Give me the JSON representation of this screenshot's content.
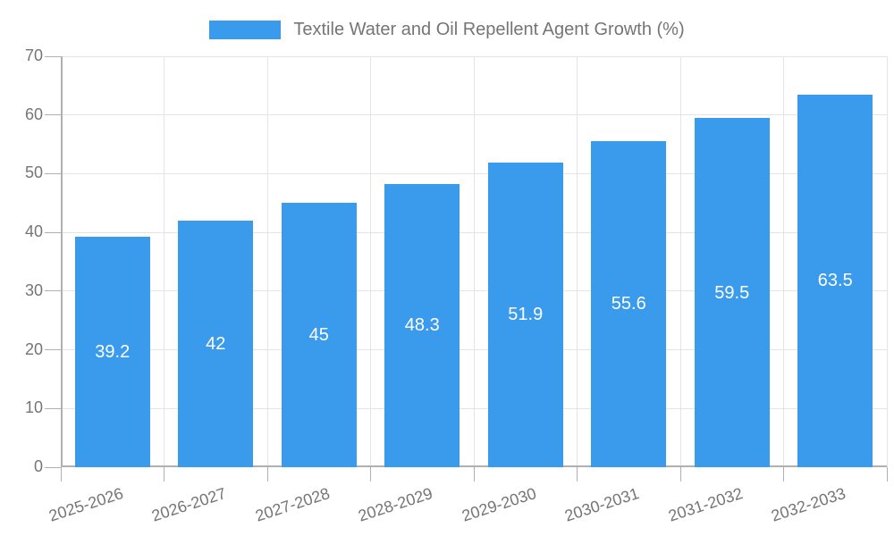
{
  "chart_data": {
    "type": "bar",
    "legend": "Textile Water and Oil Repellent Agent Growth (%)",
    "legend_position": "top-center",
    "categories": [
      "2025-2026",
      "2026-2027",
      "2027-2028",
      "2028-2029",
      "2029-2030",
      "2030-2031",
      "2031-2032",
      "2032-2033"
    ],
    "values": [
      39.2,
      42,
      45,
      48.3,
      51.9,
      55.6,
      59.5,
      63.5
    ],
    "title": "",
    "xlabel": "",
    "ylabel": "",
    "ylim": [
      0,
      70
    ],
    "yticks": [
      0,
      10,
      20,
      30,
      40,
      50,
      60,
      70
    ],
    "grid": "on",
    "x_label_rotation_deg": -18,
    "colors": {
      "bar": "#3a9aec",
      "grid": "#e4e4e4",
      "axis": "#b0b0b0",
      "tick_text": "#757575",
      "legend_text": "#757575",
      "value_label": "#ffffff",
      "background": "#ffffff"
    }
  }
}
